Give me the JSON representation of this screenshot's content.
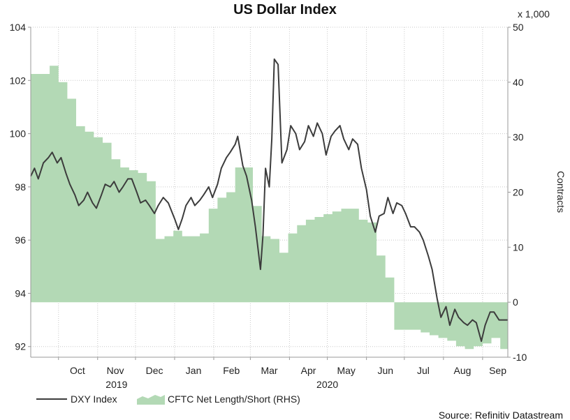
{
  "chart_data": {
    "type": "line",
    "title": "US Dollar Index",
    "source": "Source: Refinitiv Datastream",
    "left_axis": {
      "ylim": [
        91.6,
        104
      ],
      "ticks": [
        92,
        94,
        96,
        98,
        100,
        102,
        104
      ],
      "tick_labels": [
        "92",
        "94",
        "96",
        "98",
        "100",
        "102",
        "104"
      ]
    },
    "right_axis": {
      "label": "Contracts",
      "unit_label": "x 1,000",
      "ylim": [
        -10,
        50
      ],
      "ticks": [
        -10,
        0,
        10,
        20,
        30,
        40,
        50
      ],
      "tick_labels": [
        "-10",
        "0",
        "10",
        "20",
        "30",
        "40",
        "50"
      ]
    },
    "x_axis": {
      "start": "2019-09-09",
      "end": "2020-09-21",
      "months": [
        {
          "label": "Oct",
          "date": "2019-10-16"
        },
        {
          "label": "Nov",
          "date": "2019-11-15"
        },
        {
          "label": "Dec",
          "date": "2019-12-16"
        },
        {
          "label": "Jan",
          "date": "2020-01-16"
        },
        {
          "label": "Feb",
          "date": "2020-02-15"
        },
        {
          "label": "Mar",
          "date": "2020-03-16"
        },
        {
          "label": "Apr",
          "date": "2020-04-16"
        },
        {
          "label": "May",
          "date": "2020-05-16"
        },
        {
          "label": "Jun",
          "date": "2020-06-16"
        },
        {
          "label": "Jul",
          "date": "2020-07-16"
        },
        {
          "label": "Aug",
          "date": "2020-08-16"
        },
        {
          "label": "Sep",
          "date": "2020-09-13"
        }
      ],
      "gridlines": [
        "2019-10-01",
        "2019-11-01",
        "2019-12-01",
        "2020-01-01",
        "2020-02-01",
        "2020-03-01",
        "2020-04-01",
        "2020-05-01",
        "2020-06-01",
        "2020-07-01",
        "2020-08-01",
        "2020-09-01"
      ],
      "years": [
        {
          "label": "2019",
          "date": "2019-11-16"
        },
        {
          "label": "2020",
          "date": "2020-05-01"
        }
      ]
    },
    "series": [
      {
        "name": "DXY Index",
        "kind": "line",
        "axis": "left",
        "color": "#3c3c3c",
        "points": [
          [
            "2019-09-09",
            98.4
          ],
          [
            "2019-09-12",
            98.7
          ],
          [
            "2019-09-15",
            98.3
          ],
          [
            "2019-09-19",
            98.9
          ],
          [
            "2019-09-23",
            99.1
          ],
          [
            "2019-09-26",
            99.3
          ],
          [
            "2019-09-30",
            98.9
          ],
          [
            "2019-10-03",
            99.1
          ],
          [
            "2019-10-07",
            98.5
          ],
          [
            "2019-10-10",
            98.1
          ],
          [
            "2019-10-14",
            97.7
          ],
          [
            "2019-10-17",
            97.3
          ],
          [
            "2019-10-21",
            97.5
          ],
          [
            "2019-10-24",
            97.8
          ],
          [
            "2019-10-28",
            97.4
          ],
          [
            "2019-10-31",
            97.2
          ],
          [
            "2019-11-04",
            97.7
          ],
          [
            "2019-11-07",
            98.1
          ],
          [
            "2019-11-11",
            98.0
          ],
          [
            "2019-11-14",
            98.2
          ],
          [
            "2019-11-18",
            97.8
          ],
          [
            "2019-11-21",
            98.0
          ],
          [
            "2019-11-25",
            98.3
          ],
          [
            "2019-11-28",
            98.3
          ],
          [
            "2019-12-02",
            97.8
          ],
          [
            "2019-12-05",
            97.4
          ],
          [
            "2019-12-09",
            97.5
          ],
          [
            "2019-12-12",
            97.3
          ],
          [
            "2019-12-16",
            97.0
          ],
          [
            "2019-12-19",
            97.3
          ],
          [
            "2019-12-23",
            97.6
          ],
          [
            "2019-12-27",
            97.4
          ],
          [
            "2020-01-01",
            96.8
          ],
          [
            "2020-01-04",
            96.4
          ],
          [
            "2020-01-07",
            96.8
          ],
          [
            "2020-01-10",
            97.3
          ],
          [
            "2020-01-14",
            97.6
          ],
          [
            "2020-01-17",
            97.3
          ],
          [
            "2020-01-21",
            97.5
          ],
          [
            "2020-01-24",
            97.7
          ],
          [
            "2020-01-28",
            98.0
          ],
          [
            "2020-01-31",
            97.6
          ],
          [
            "2020-02-04",
            98.1
          ],
          [
            "2020-02-07",
            98.7
          ],
          [
            "2020-02-11",
            99.1
          ],
          [
            "2020-02-14",
            99.3
          ],
          [
            "2020-02-18",
            99.6
          ],
          [
            "2020-02-20",
            99.9
          ],
          [
            "2020-02-24",
            98.8
          ],
          [
            "2020-02-27",
            98.4
          ],
          [
            "2020-03-02",
            97.5
          ],
          [
            "2020-03-05",
            96.5
          ],
          [
            "2020-03-09",
            94.9
          ],
          [
            "2020-03-11",
            96.2
          ],
          [
            "2020-03-13",
            98.7
          ],
          [
            "2020-03-16",
            98.0
          ],
          [
            "2020-03-18",
            99.8
          ],
          [
            "2020-03-20",
            102.8
          ],
          [
            "2020-03-23",
            102.6
          ],
          [
            "2020-03-26",
            98.9
          ],
          [
            "2020-03-30",
            99.4
          ],
          [
            "2020-04-02",
            100.3
          ],
          [
            "2020-04-06",
            100.0
          ],
          [
            "2020-04-09",
            99.4
          ],
          [
            "2020-04-13",
            99.7
          ],
          [
            "2020-04-16",
            100.3
          ],
          [
            "2020-04-20",
            99.9
          ],
          [
            "2020-04-23",
            100.4
          ],
          [
            "2020-04-27",
            100.0
          ],
          [
            "2020-04-30",
            99.2
          ],
          [
            "2020-05-04",
            99.9
          ],
          [
            "2020-05-07",
            100.1
          ],
          [
            "2020-05-11",
            100.3
          ],
          [
            "2020-05-14",
            99.8
          ],
          [
            "2020-05-18",
            99.4
          ],
          [
            "2020-05-21",
            99.8
          ],
          [
            "2020-05-25",
            99.6
          ],
          [
            "2020-05-28",
            98.7
          ],
          [
            "2020-06-01",
            97.9
          ],
          [
            "2020-06-04",
            96.9
          ],
          [
            "2020-06-08",
            96.3
          ],
          [
            "2020-06-11",
            96.9
          ],
          [
            "2020-06-15",
            97.0
          ],
          [
            "2020-06-18",
            97.6
          ],
          [
            "2020-06-22",
            97.0
          ],
          [
            "2020-06-25",
            97.4
          ],
          [
            "2020-06-29",
            97.3
          ],
          [
            "2020-07-02",
            97.0
          ],
          [
            "2020-07-06",
            96.5
          ],
          [
            "2020-07-09",
            96.5
          ],
          [
            "2020-07-13",
            96.3
          ],
          [
            "2020-07-16",
            96.0
          ],
          [
            "2020-07-20",
            95.4
          ],
          [
            "2020-07-23",
            94.9
          ],
          [
            "2020-07-27",
            93.8
          ],
          [
            "2020-07-30",
            93.1
          ],
          [
            "2020-08-03",
            93.5
          ],
          [
            "2020-08-06",
            92.8
          ],
          [
            "2020-08-10",
            93.4
          ],
          [
            "2020-08-13",
            93.1
          ],
          [
            "2020-08-17",
            92.9
          ],
          [
            "2020-08-20",
            92.8
          ],
          [
            "2020-08-24",
            93.0
          ],
          [
            "2020-08-27",
            92.9
          ],
          [
            "2020-08-31",
            92.2
          ],
          [
            "2020-09-03",
            92.8
          ],
          [
            "2020-09-07",
            93.3
          ],
          [
            "2020-09-10",
            93.3
          ],
          [
            "2020-09-14",
            93.0
          ],
          [
            "2020-09-17",
            93.0
          ],
          [
            "2020-09-21",
            93.0
          ]
        ]
      },
      {
        "name": "CFTC Net Length/Short (RHS)",
        "kind": "step-area",
        "axis": "right",
        "color": "#b3d9b5",
        "points": [
          [
            "2019-09-09",
            41.5
          ],
          [
            "2019-09-24",
            43
          ],
          [
            "2019-10-01",
            40
          ],
          [
            "2019-10-08",
            37
          ],
          [
            "2019-10-15",
            32
          ],
          [
            "2019-10-22",
            31
          ],
          [
            "2019-10-29",
            30
          ],
          [
            "2019-11-05",
            29
          ],
          [
            "2019-11-12",
            26
          ],
          [
            "2019-11-19",
            24.5
          ],
          [
            "2019-11-26",
            24
          ],
          [
            "2019-12-03",
            23.5
          ],
          [
            "2019-12-10",
            22
          ],
          [
            "2019-12-17",
            11.5
          ],
          [
            "2019-12-24",
            12
          ],
          [
            "2019-12-31",
            13
          ],
          [
            "2020-01-07",
            12
          ],
          [
            "2020-01-14",
            12
          ],
          [
            "2020-01-21",
            12.5
          ],
          [
            "2020-01-28",
            17
          ],
          [
            "2020-02-04",
            19
          ],
          [
            "2020-02-11",
            20
          ],
          [
            "2020-02-18",
            24.5
          ],
          [
            "2020-02-25",
            24.5
          ],
          [
            "2020-03-03",
            17.5
          ],
          [
            "2020-03-10",
            12
          ],
          [
            "2020-03-17",
            11.5
          ],
          [
            "2020-03-24",
            9
          ],
          [
            "2020-03-31",
            12.5
          ],
          [
            "2020-04-07",
            14
          ],
          [
            "2020-04-14",
            15
          ],
          [
            "2020-04-21",
            15.5
          ],
          [
            "2020-04-28",
            16
          ],
          [
            "2020-05-05",
            16.5
          ],
          [
            "2020-05-12",
            17
          ],
          [
            "2020-05-19",
            17
          ],
          [
            "2020-05-26",
            15
          ],
          [
            "2020-06-02",
            14.5
          ],
          [
            "2020-06-09",
            8.5
          ],
          [
            "2020-06-16",
            4.5
          ],
          [
            "2020-06-23",
            -5
          ],
          [
            "2020-06-30",
            -5
          ],
          [
            "2020-07-07",
            -5
          ],
          [
            "2020-07-14",
            -5.5
          ],
          [
            "2020-07-21",
            -6
          ],
          [
            "2020-07-28",
            -6.5
          ],
          [
            "2020-08-04",
            -7
          ],
          [
            "2020-08-11",
            -8
          ],
          [
            "2020-08-18",
            -8.5
          ],
          [
            "2020-08-25",
            -8
          ],
          [
            "2020-09-01",
            -7.5
          ],
          [
            "2020-09-08",
            -6.5
          ],
          [
            "2020-09-15",
            -8.5
          ],
          [
            "2020-09-21",
            -8.5
          ]
        ]
      }
    ],
    "legend": {
      "placement": "bottom-left",
      "items": [
        {
          "label": "DXY Index",
          "swatch": "line"
        },
        {
          "label": "CFTC Net Length/Short (RHS)",
          "swatch": "area"
        }
      ]
    }
  }
}
